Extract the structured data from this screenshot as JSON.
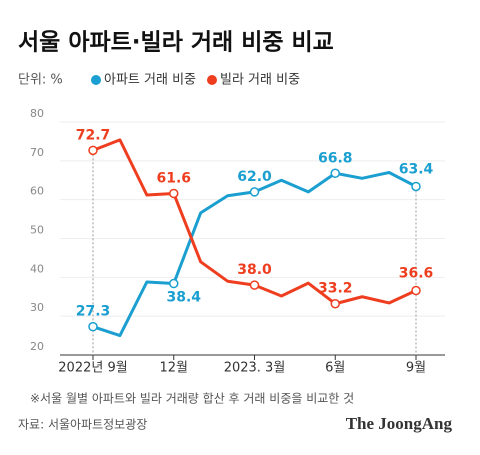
{
  "chart_data": {
    "type": "line",
    "title": "서울 아파트·빌라 거래 비중 비교",
    "unit": "단위: %",
    "categories": [
      "2022년 9월",
      null,
      null,
      "12월",
      null,
      null,
      "2023. 3월",
      null,
      null,
      "6월",
      null,
      null,
      "9월"
    ],
    "series": [
      {
        "name": "아파트 거래 비중",
        "color": "#1a9fd0",
        "values": [
          27.3,
          25,
          38.8,
          38.4,
          56.6,
          61,
          62.0,
          65,
          62,
          66.8,
          65.5,
          67,
          63.4
        ],
        "value_labels": [
          "27.3",
          null,
          null,
          "38.4",
          null,
          null,
          "62.0",
          null,
          null,
          "66.8",
          null,
          null,
          "63.4"
        ]
      },
      {
        "name": "빌라 거래 비중",
        "color": "#ee3e1f",
        "values": [
          72.7,
          75.4,
          61.2,
          61.6,
          44,
          39,
          38.0,
          35.2,
          38.5,
          33.2,
          35,
          33.4,
          36.6
        ],
        "value_labels": [
          "72.7",
          null,
          null,
          "61.6",
          null,
          null,
          "38.0",
          null,
          null,
          "33.2",
          null,
          null,
          "36.6"
        ]
      }
    ],
    "ylim": [
      20,
      80
    ],
    "yticks": [
      20,
      30,
      40,
      50,
      60,
      70,
      80
    ],
    "grid": true,
    "note": "※서울 월별 아파트와 빌라 거래량 합산 후 거래 비중을 비교한 것",
    "source": "자료: 서울아파트정보광장",
    "logo": "The JoongAng"
  }
}
